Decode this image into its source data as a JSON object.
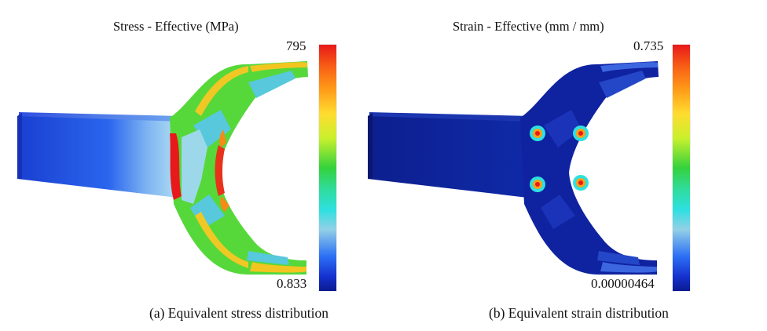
{
  "panels": {
    "stress": {
      "title": "Stress - Effective (MPa)",
      "max": "795",
      "min": "0.833",
      "caption": "(a) Equivalent stress distribution"
    },
    "strain": {
      "title": "Strain - Effective (mm / mm)",
      "max": "0.735",
      "min": "0.00000464",
      "caption": "(b) Equivalent strain distribution"
    }
  },
  "colors": {
    "low": "#0b1a8f",
    "mid": "#2ee0e0",
    "green": "#35d23d",
    "high": "#e8191a"
  }
}
